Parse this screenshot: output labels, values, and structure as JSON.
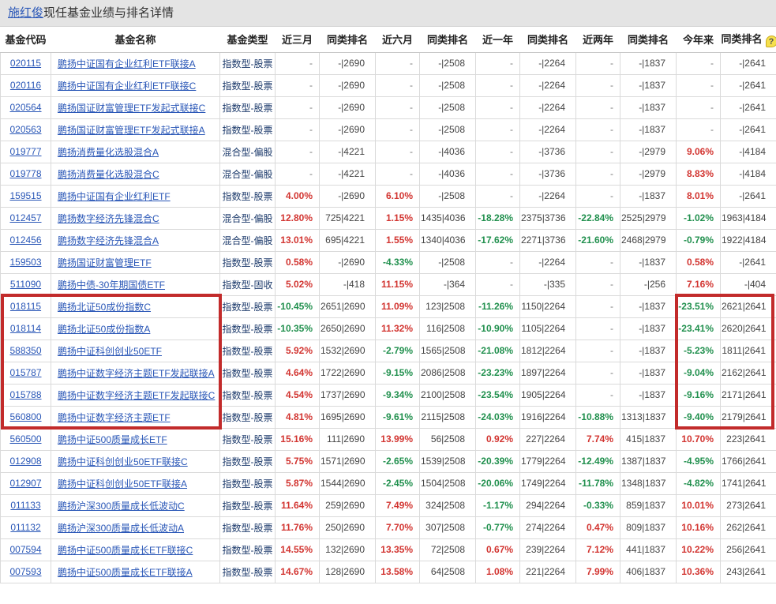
{
  "header": {
    "manager": "施红俊",
    "title_suffix": "现任基金业绩与排名详情"
  },
  "colors": {
    "positive": "#d23430",
    "negative": "#21904e",
    "link": "#2a57b7",
    "type_text": "#1c3a6b",
    "highlight_box": "#c22b2b",
    "title_bar_bg": "#e4e4e4"
  },
  "table": {
    "help_glyph": "?",
    "help_icon_name": "question-mark-icon",
    "columns": [
      {
        "key": "code",
        "label": "基金代码"
      },
      {
        "key": "name",
        "label": "基金名称"
      },
      {
        "key": "type",
        "label": "基金类型"
      },
      {
        "key": "m3",
        "label": "近三月"
      },
      {
        "key": "m3_rank",
        "label": "同类排名"
      },
      {
        "key": "m6",
        "label": "近六月"
      },
      {
        "key": "m6_rank",
        "label": "同类排名"
      },
      {
        "key": "y1",
        "label": "近一年"
      },
      {
        "key": "y1_rank",
        "label": "同类排名"
      },
      {
        "key": "y2",
        "label": "近两年"
      },
      {
        "key": "y2_rank",
        "label": "同类排名"
      },
      {
        "key": "ytd",
        "label": "今年来"
      },
      {
        "key": "ytd_rank",
        "label": "同类排名",
        "help": true
      }
    ],
    "rows": [
      {
        "code": "020115",
        "name": "鹏扬中证国有企业红利ETF联接A",
        "type": "指数型-股票",
        "hl": false,
        "vals": [
          "-",
          "-|2690",
          "-",
          "-|2508",
          "-",
          "-|2264",
          "-",
          "-|1837",
          "-",
          "-|2641"
        ]
      },
      {
        "code": "020116",
        "name": "鹏扬中证国有企业红利ETF联接C",
        "type": "指数型-股票",
        "hl": false,
        "vals": [
          "-",
          "-|2690",
          "-",
          "-|2508",
          "-",
          "-|2264",
          "-",
          "-|1837",
          "-",
          "-|2641"
        ]
      },
      {
        "code": "020564",
        "name": "鹏扬国证财富管理ETF发起式联接C",
        "type": "指数型-股票",
        "hl": false,
        "vals": [
          "-",
          "-|2690",
          "-",
          "-|2508",
          "-",
          "-|2264",
          "-",
          "-|1837",
          "-",
          "-|2641"
        ]
      },
      {
        "code": "020563",
        "name": "鹏扬国证财富管理ETF发起式联接A",
        "type": "指数型-股票",
        "hl": false,
        "vals": [
          "-",
          "-|2690",
          "-",
          "-|2508",
          "-",
          "-|2264",
          "-",
          "-|1837",
          "-",
          "-|2641"
        ]
      },
      {
        "code": "019777",
        "name": "鹏扬消费量化选股混合A",
        "type": "混合型-偏股",
        "hl": false,
        "vals": [
          "-",
          "-|4221",
          "-",
          "-|4036",
          "-",
          "-|3736",
          "-",
          "-|2979",
          "9.06%",
          "-|4184"
        ]
      },
      {
        "code": "019778",
        "name": "鹏扬消费量化选股混合C",
        "type": "混合型-偏股",
        "hl": false,
        "vals": [
          "-",
          "-|4221",
          "-",
          "-|4036",
          "-",
          "-|3736",
          "-",
          "-|2979",
          "8.83%",
          "-|4184"
        ]
      },
      {
        "code": "159515",
        "name": "鹏扬中证国有企业红利ETF",
        "type": "指数型-股票",
        "hl": false,
        "vals": [
          "4.00%",
          "-|2690",
          "6.10%",
          "-|2508",
          "-",
          "-|2264",
          "-",
          "-|1837",
          "8.01%",
          "-|2641"
        ]
      },
      {
        "code": "012457",
        "name": "鹏扬数字经济先锋混合C",
        "type": "混合型-偏股",
        "hl": false,
        "vals": [
          "12.80%",
          "725|4221",
          "1.15%",
          "1435|4036",
          "-18.28%",
          "2375|3736",
          "-22.84%",
          "2525|2979",
          "-1.02%",
          "1963|4184"
        ]
      },
      {
        "code": "012456",
        "name": "鹏扬数字经济先锋混合A",
        "type": "混合型-偏股",
        "hl": false,
        "vals": [
          "13.01%",
          "695|4221",
          "1.55%",
          "1340|4036",
          "-17.62%",
          "2271|3736",
          "-21.60%",
          "2468|2979",
          "-0.79%",
          "1922|4184"
        ]
      },
      {
        "code": "159503",
        "name": "鹏扬国证财富管理ETF",
        "type": "指数型-股票",
        "hl": false,
        "vals": [
          "0.58%",
          "-|2690",
          "-4.33%",
          "-|2508",
          "-",
          "-|2264",
          "-",
          "-|1837",
          "0.58%",
          "-|2641"
        ]
      },
      {
        "code": "511090",
        "name": "鹏扬中债-30年期国债ETF",
        "type": "指数型-固收",
        "hl": false,
        "vals": [
          "5.02%",
          "-|418",
          "11.15%",
          "-|364",
          "-",
          "-|335",
          "-",
          "-|256",
          "7.16%",
          "-|404"
        ]
      },
      {
        "code": "018115",
        "name": "鹏扬北证50成份指数C",
        "type": "指数型-股票",
        "hl": true,
        "vals": [
          "-10.45%",
          "2651|2690",
          "11.09%",
          "123|2508",
          "-11.26%",
          "1150|2264",
          "-",
          "-|1837",
          "-23.51%",
          "2621|2641"
        ]
      },
      {
        "code": "018114",
        "name": "鹏扬北证50成份指数A",
        "type": "指数型-股票",
        "hl": true,
        "vals": [
          "-10.35%",
          "2650|2690",
          "11.32%",
          "116|2508",
          "-10.90%",
          "1105|2264",
          "-",
          "-|1837",
          "-23.41%",
          "2620|2641"
        ]
      },
      {
        "code": "588350",
        "name": "鹏扬中证科创创业50ETF",
        "type": "指数型-股票",
        "hl": true,
        "vals": [
          "5.92%",
          "1532|2690",
          "-2.79%",
          "1565|2508",
          "-21.08%",
          "1812|2264",
          "-",
          "-|1837",
          "-5.23%",
          "1811|2641"
        ]
      },
      {
        "code": "015787",
        "name": "鹏扬中证数字经济主题ETF发起联接A",
        "type": "指数型-股票",
        "hl": true,
        "vals": [
          "4.64%",
          "1722|2690",
          "-9.15%",
          "2086|2508",
          "-23.23%",
          "1897|2264",
          "-",
          "-|1837",
          "-9.04%",
          "2162|2641"
        ]
      },
      {
        "code": "015788",
        "name": "鹏扬中证数字经济主题ETF发起联接C",
        "type": "指数型-股票",
        "hl": true,
        "vals": [
          "4.54%",
          "1737|2690",
          "-9.34%",
          "2100|2508",
          "-23.54%",
          "1905|2264",
          "-",
          "-|1837",
          "-9.16%",
          "2171|2641"
        ]
      },
      {
        "code": "560800",
        "name": "鹏扬中证数字经济主题ETF",
        "type": "指数型-股票",
        "hl": true,
        "vals": [
          "4.81%",
          "1695|2690",
          "-9.61%",
          "2115|2508",
          "-24.03%",
          "1916|2264",
          "-10.88%",
          "1313|1837",
          "-9.40%",
          "2179|2641"
        ]
      },
      {
        "code": "560500",
        "name": "鹏扬中证500质量成长ETF",
        "type": "指数型-股票",
        "hl": false,
        "vals": [
          "15.16%",
          "111|2690",
          "13.99%",
          "56|2508",
          "0.92%",
          "227|2264",
          "7.74%",
          "415|1837",
          "10.70%",
          "223|2641"
        ]
      },
      {
        "code": "012908",
        "name": "鹏扬中证科创创业50ETF联接C",
        "type": "指数型-股票",
        "hl": false,
        "vals": [
          "5.75%",
          "1571|2690",
          "-2.65%",
          "1539|2508",
          "-20.39%",
          "1779|2264",
          "-12.49%",
          "1387|1837",
          "-4.95%",
          "1766|2641"
        ]
      },
      {
        "code": "012907",
        "name": "鹏扬中证科创创业50ETF联接A",
        "type": "指数型-股票",
        "hl": false,
        "vals": [
          "5.87%",
          "1544|2690",
          "-2.45%",
          "1504|2508",
          "-20.06%",
          "1749|2264",
          "-11.78%",
          "1348|1837",
          "-4.82%",
          "1741|2641"
        ]
      },
      {
        "code": "011133",
        "name": "鹏扬沪深300质量成长低波动C",
        "type": "指数型-股票",
        "hl": false,
        "vals": [
          "11.64%",
          "259|2690",
          "7.49%",
          "324|2508",
          "-1.17%",
          "294|2264",
          "-0.33%",
          "859|1837",
          "10.01%",
          "273|2641"
        ]
      },
      {
        "code": "011132",
        "name": "鹏扬沪深300质量成长低波动A",
        "type": "指数型-股票",
        "hl": false,
        "vals": [
          "11.76%",
          "250|2690",
          "7.70%",
          "307|2508",
          "-0.77%",
          "274|2264",
          "0.47%",
          "809|1837",
          "10.16%",
          "262|2641"
        ]
      },
      {
        "code": "007594",
        "name": "鹏扬中证500质量成长ETF联接C",
        "type": "指数型-股票",
        "hl": false,
        "vals": [
          "14.55%",
          "132|2690",
          "13.35%",
          "72|2508",
          "0.67%",
          "239|2264",
          "7.12%",
          "441|1837",
          "10.22%",
          "256|2641"
        ]
      },
      {
        "code": "007593",
        "name": "鹏扬中证500质量成长ETF联接A",
        "type": "指数型-股票",
        "hl": false,
        "vals": [
          "14.67%",
          "128|2690",
          "13.58%",
          "64|2508",
          "1.08%",
          "221|2264",
          "7.99%",
          "406|1837",
          "10.36%",
          "243|2641"
        ]
      }
    ]
  }
}
